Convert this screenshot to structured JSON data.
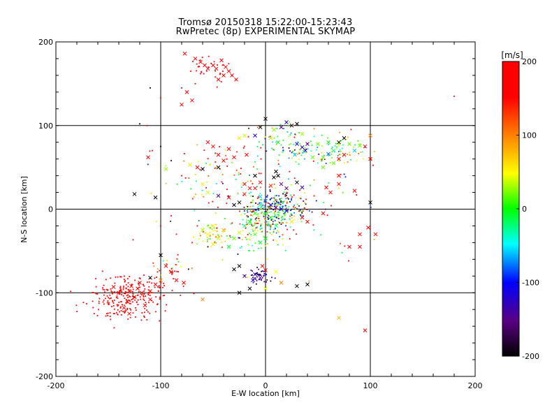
{
  "chart_data": {
    "type": "scatter",
    "title": "Tromsø 20150318 15:22:00-15:23:43",
    "subtitle": "RwPretec (8p) EXPERIMENTAL SKYMAP",
    "xlabel": "E-W location [km]",
    "ylabel": "N-S location [km]",
    "xlim": [
      -200,
      200
    ],
    "ylim": [
      -200,
      200
    ],
    "xticks": [
      -200,
      -100,
      0,
      100,
      200
    ],
    "yticks": [
      -200,
      -100,
      0,
      100,
      200
    ],
    "grid": true,
    "colorbar": {
      "label": "[m/s]",
      "range": [
        -200,
        200
      ],
      "ticks": [
        200,
        100,
        0,
        -100,
        -200
      ],
      "colormap": [
        "#000000",
        "#5a0082",
        "#0000ff",
        "#00ffff",
        "#00ff00",
        "#ffff00",
        "#ff8000",
        "#ff0000"
      ],
      "placement": "right"
    },
    "markers": "cross = velocity vector, dot = point echo",
    "points": [
      [
        -77,
        186,
        200,
        "x"
      ],
      [
        -67,
        180,
        200,
        "x"
      ],
      [
        -62,
        176,
        190,
        "x"
      ],
      [
        -58,
        172,
        200,
        "x"
      ],
      [
        -55,
        168,
        200,
        "x"
      ],
      [
        -50,
        172,
        180,
        "x"
      ],
      [
        -47,
        168,
        200,
        "x"
      ],
      [
        -42,
        178,
        200,
        "x"
      ],
      [
        -38,
        170,
        200,
        "x"
      ],
      [
        -35,
        165,
        200,
        "x"
      ],
      [
        -32,
        160,
        200,
        "x"
      ],
      [
        -40,
        160,
        200,
        "x"
      ],
      [
        -28,
        155,
        200,
        "x"
      ],
      [
        -45,
        155,
        200,
        "x"
      ],
      [
        -70,
        130,
        200,
        "x"
      ],
      [
        -75,
        140,
        200,
        "x"
      ],
      [
        -80,
        125,
        200,
        "x"
      ],
      [
        -110,
        145,
        -200,
        "d"
      ],
      [
        -100,
        133,
        150,
        "d"
      ],
      [
        -80,
        145,
        200,
        "d"
      ],
      [
        -67,
        150,
        200,
        "d"
      ],
      [
        180,
        135,
        200,
        "d"
      ],
      [
        -120,
        102,
        -200,
        "d"
      ],
      [
        -113,
        100,
        200,
        "d"
      ],
      [
        -100,
        75,
        -200,
        "d"
      ],
      [
        -108,
        70,
        200,
        "d"
      ],
      [
        -112,
        62,
        200,
        "x"
      ],
      [
        -125,
        18,
        -200,
        "x"
      ],
      [
        -105,
        14,
        -200,
        "x"
      ],
      [
        -55,
        80,
        180,
        "x"
      ],
      [
        -50,
        75,
        200,
        "x"
      ],
      [
        -45,
        65,
        200,
        "x"
      ],
      [
        -30,
        62,
        200,
        "x"
      ],
      [
        -18,
        65,
        200,
        "x"
      ],
      [
        -35,
        72,
        200,
        "x"
      ],
      [
        -60,
        48,
        -200,
        "x"
      ],
      [
        -45,
        50,
        -200,
        "x"
      ],
      [
        -40,
        58,
        150,
        "x"
      ],
      [
        -60,
        30,
        60,
        "x"
      ],
      [
        -55,
        20,
        40,
        "x"
      ],
      [
        -45,
        16,
        -150,
        "x"
      ],
      [
        -35,
        14,
        150,
        "x"
      ],
      [
        -95,
        48,
        30,
        "x"
      ],
      [
        -90,
        58,
        -200,
        "d"
      ],
      [
        -80,
        40,
        200,
        "d"
      ],
      [
        -72,
        53,
        60,
        "x"
      ],
      [
        -65,
        50,
        200,
        "x"
      ],
      [
        -5,
        98,
        -200,
        "x"
      ],
      [
        0,
        108,
        -200,
        "x"
      ],
      [
        -10,
        88,
        -120,
        "x"
      ],
      [
        8,
        95,
        30,
        "x"
      ],
      [
        15,
        98,
        -150,
        "x"
      ],
      [
        20,
        104,
        -120,
        "x"
      ],
      [
        25,
        100,
        -180,
        "x"
      ],
      [
        30,
        102,
        -200,
        "x"
      ],
      [
        35,
        90,
        30,
        "x"
      ],
      [
        5,
        85,
        40,
        "x"
      ],
      [
        12,
        80,
        0,
        "x"
      ],
      [
        -25,
        85,
        60,
        "x"
      ],
      [
        -20,
        88,
        40,
        "x"
      ],
      [
        30,
        78,
        -120,
        "x"
      ],
      [
        35,
        74,
        -120,
        "x"
      ],
      [
        40,
        78,
        -150,
        "x"
      ],
      [
        38,
        70,
        -100,
        "x"
      ],
      [
        28,
        65,
        -60,
        "x"
      ],
      [
        45,
        62,
        20,
        "x"
      ],
      [
        55,
        62,
        20,
        "x"
      ],
      [
        60,
        66,
        -80,
        "x"
      ],
      [
        65,
        70,
        -30,
        "x"
      ],
      [
        70,
        80,
        -200,
        "x"
      ],
      [
        75,
        85,
        -200,
        "x"
      ],
      [
        80,
        78,
        20,
        "x"
      ],
      [
        90,
        76,
        20,
        "x"
      ],
      [
        95,
        75,
        200,
        "x"
      ],
      [
        100,
        60,
        200,
        "x"
      ],
      [
        100,
        88,
        100,
        "x"
      ],
      [
        85,
        70,
        -60,
        "x"
      ],
      [
        55,
        50,
        20,
        "x"
      ],
      [
        65,
        55,
        20,
        "x"
      ],
      [
        70,
        60,
        200,
        "x"
      ],
      [
        75,
        65,
        200,
        "x"
      ],
      [
        50,
        78,
        20,
        "x"
      ],
      [
        60,
        80,
        0,
        "x"
      ],
      [
        10,
        45,
        -200,
        "x"
      ],
      [
        12,
        40,
        -200,
        "x"
      ],
      [
        8,
        38,
        -200,
        "x"
      ],
      [
        15,
        30,
        -150,
        "x"
      ],
      [
        20,
        25,
        -150,
        "x"
      ],
      [
        5,
        28,
        130,
        "x"
      ],
      [
        -5,
        32,
        180,
        "x"
      ],
      [
        -10,
        25,
        200,
        "x"
      ],
      [
        -15,
        25,
        160,
        "x"
      ],
      [
        -20,
        18,
        140,
        "x"
      ],
      [
        -25,
        8,
        -200,
        "x"
      ],
      [
        -30,
        5,
        -200,
        "x"
      ],
      [
        -10,
        40,
        -200,
        "x"
      ],
      [
        -20,
        30,
        150,
        "x"
      ],
      [
        30,
        32,
        -200,
        "x"
      ],
      [
        35,
        26,
        -130,
        "x"
      ],
      [
        58,
        26,
        200,
        "x"
      ],
      [
        62,
        20,
        200,
        "x"
      ],
      [
        70,
        30,
        200,
        "x"
      ],
      [
        85,
        22,
        200,
        "x"
      ],
      [
        70,
        40,
        200,
        "x"
      ],
      [
        100,
        8,
        -200,
        "x"
      ],
      [
        -5,
        15,
        -60,
        "x"
      ],
      [
        0,
        10,
        -80,
        "x"
      ],
      [
        5,
        5,
        -100,
        "x"
      ],
      [
        10,
        2,
        -150,
        "x"
      ],
      [
        15,
        0,
        -120,
        "x"
      ],
      [
        20,
        -2,
        -100,
        "x"
      ],
      [
        -5,
        5,
        -40,
        "x"
      ],
      [
        0,
        -5,
        -20,
        "x"
      ],
      [
        5,
        -10,
        -10,
        "x"
      ],
      [
        -10,
        -5,
        10,
        "x"
      ],
      [
        -15,
        -15,
        0,
        "x"
      ],
      [
        -20,
        -20,
        -20,
        "x"
      ],
      [
        -25,
        -28,
        40,
        "x"
      ],
      [
        -10,
        -30,
        20,
        "x"
      ],
      [
        0,
        -35,
        0,
        "x"
      ],
      [
        -5,
        -40,
        -10,
        "x"
      ],
      [
        10,
        -20,
        -30,
        "x"
      ],
      [
        25,
        -15,
        60,
        "x"
      ],
      [
        35,
        -10,
        200,
        "x"
      ],
      [
        40,
        -15,
        200,
        "x"
      ],
      [
        55,
        -5,
        200,
        "x"
      ],
      [
        -35,
        -45,
        -10,
        "x"
      ],
      [
        -30,
        -35,
        20,
        "x"
      ],
      [
        -50,
        -20,
        60,
        "x"
      ],
      [
        -55,
        -30,
        50,
        "x"
      ],
      [
        -45,
        -35,
        40,
        "x"
      ],
      [
        -50,
        -42,
        60,
        "x"
      ],
      [
        -60,
        -25,
        30,
        "x"
      ],
      [
        -40,
        -25,
        80,
        "x"
      ],
      [
        -55,
        -45,
        -200,
        "d"
      ],
      [
        -70,
        -40,
        150,
        "d"
      ],
      [
        -65,
        -20,
        200,
        "d"
      ],
      [
        -85,
        -30,
        200,
        "d"
      ],
      [
        -90,
        -8,
        180,
        "d"
      ],
      [
        -100,
        -20,
        200,
        "d"
      ],
      [
        90,
        -30,
        200,
        "x"
      ],
      [
        98,
        -22,
        200,
        "x"
      ],
      [
        80,
        -45,
        200,
        "x"
      ],
      [
        90,
        -45,
        200,
        "x"
      ],
      [
        105,
        -30,
        200,
        "x"
      ],
      [
        95,
        -145,
        200,
        "x"
      ],
      [
        70,
        -130,
        80,
        "x"
      ],
      [
        -100,
        -55,
        -200,
        "x"
      ],
      [
        -95,
        -68,
        150,
        "x"
      ],
      [
        -90,
        -75,
        200,
        "x"
      ],
      [
        -100,
        -85,
        100,
        "x"
      ],
      [
        -110,
        -82,
        -200,
        "x"
      ],
      [
        -85,
        -85,
        200,
        "x"
      ],
      [
        -78,
        -88,
        200,
        "x"
      ],
      [
        -10,
        -78,
        -120,
        "x"
      ],
      [
        -5,
        -82,
        -150,
        "x"
      ],
      [
        -12,
        -85,
        -120,
        "x"
      ],
      [
        0,
        -73,
        200,
        "x"
      ],
      [
        -3,
        -68,
        150,
        "x"
      ],
      [
        10,
        -75,
        50,
        "x"
      ],
      [
        -20,
        -80,
        -150,
        "x"
      ],
      [
        -30,
        -72,
        -200,
        "x"
      ],
      [
        -25,
        -68,
        -200,
        "x"
      ],
      [
        -15,
        -95,
        -200,
        "x"
      ],
      [
        -25,
        -100,
        -200,
        "x"
      ],
      [
        0,
        -95,
        50,
        "x"
      ],
      [
        15,
        -88,
        100,
        "x"
      ],
      [
        30,
        -92,
        -200,
        "x"
      ],
      [
        40,
        -90,
        -200,
        "x"
      ],
      [
        -60,
        -108,
        100,
        "x"
      ],
      [
        -128,
        -92,
        200,
        "x"
      ],
      [
        -130,
        -98,
        200,
        "x"
      ],
      [
        -122,
        -95,
        200,
        "x"
      ],
      [
        -118,
        -100,
        200,
        "x"
      ],
      [
        -125,
        -105,
        200,
        "x"
      ],
      [
        -132,
        -110,
        200,
        "x"
      ],
      [
        -140,
        -100,
        200,
        "x"
      ],
      [
        -135,
        -118,
        200,
        "x"
      ],
      [
        -130,
        -125,
        200,
        "x"
      ],
      [
        -115,
        -115,
        200,
        "x"
      ],
      [
        -110,
        -98,
        200,
        "x"
      ],
      [
        -145,
        -93,
        200,
        "x"
      ],
      [
        -120,
        -88,
        200,
        "x"
      ],
      [
        -105,
        -90,
        200,
        "x"
      ],
      [
        -110,
        -108,
        200,
        "x"
      ]
    ],
    "clusters": [
      {
        "cx": -130,
        "cy": -105,
        "sx": 20,
        "sy": 13,
        "n": 260,
        "v": 200,
        "dv": 0
      },
      {
        "cx": 10,
        "cy": 0,
        "sx": 14,
        "sy": 9,
        "n": 220,
        "v": -40,
        "dv": 110
      },
      {
        "cx": -5,
        "cy": -20,
        "sx": 12,
        "sy": 14,
        "n": 120,
        "v": 20,
        "dv": 60
      },
      {
        "cx": -5,
        "cy": -80,
        "sx": 6,
        "sy": 5,
        "n": 45,
        "v": -140,
        "dv": 40
      },
      {
        "cx": 25,
        "cy": 75,
        "sx": 20,
        "sy": 12,
        "n": 80,
        "v": -20,
        "dv": 70
      },
      {
        "cx": 70,
        "cy": 70,
        "sx": 15,
        "sy": 10,
        "n": 60,
        "v": 10,
        "dv": 50
      },
      {
        "cx": -50,
        "cy": -30,
        "sx": 10,
        "sy": 9,
        "n": 50,
        "v": 60,
        "dv": 50
      },
      {
        "cx": 0,
        "cy": 10,
        "sx": 40,
        "sy": 35,
        "n": 180,
        "v": 60,
        "dv": 130
      },
      {
        "cx": -55,
        "cy": 168,
        "sx": 10,
        "sy": 7,
        "n": 30,
        "v": 200,
        "dv": 0
      },
      {
        "cx": -40,
        "cy": 50,
        "sx": 20,
        "sy": 20,
        "n": 30,
        "v": 140,
        "dv": 60
      },
      {
        "cx": -90,
        "cy": -70,
        "sx": 8,
        "sy": 10,
        "n": 25,
        "v": 120,
        "dv": 120
      }
    ]
  }
}
